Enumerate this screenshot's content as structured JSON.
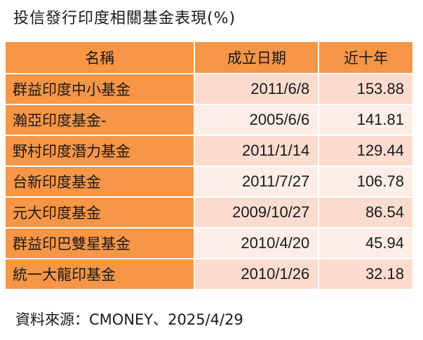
{
  "title": "投信發行印度相關基金表現(%)",
  "table": {
    "headers": [
      "名稱",
      "成立日期",
      "近十年"
    ],
    "rows": [
      {
        "name": "群益印度中小基金",
        "inception_date": "2011/6/8",
        "ten_year_return": "153.88"
      },
      {
        "name": "瀚亞印度基金-",
        "inception_date": "2005/6/6",
        "ten_year_return": "141.81"
      },
      {
        "name": "野村印度潛力基金",
        "inception_date": "2011/1/14",
        "ten_year_return": "129.44"
      },
      {
        "name": "台新印度基金",
        "inception_date": "2011/7/27",
        "ten_year_return": "106.78"
      },
      {
        "name": "元大印度基金",
        "inception_date": "2009/10/27",
        "ten_year_return": "86.54"
      },
      {
        "name": "群益印巴雙星基金",
        "inception_date": "2010/4/20",
        "ten_year_return": "45.94"
      },
      {
        "name": "統一大龍印基金",
        "inception_date": "2010/1/26",
        "ten_year_return": "32.18"
      }
    ]
  },
  "source": "資料來源：CMONEY、2025/4/29",
  "colors": {
    "header_bg": "#F79646",
    "name_col_bg": "#F79646",
    "row_odd_bg": "#FBDCCF",
    "row_even_bg": "#FDEEE7"
  }
}
